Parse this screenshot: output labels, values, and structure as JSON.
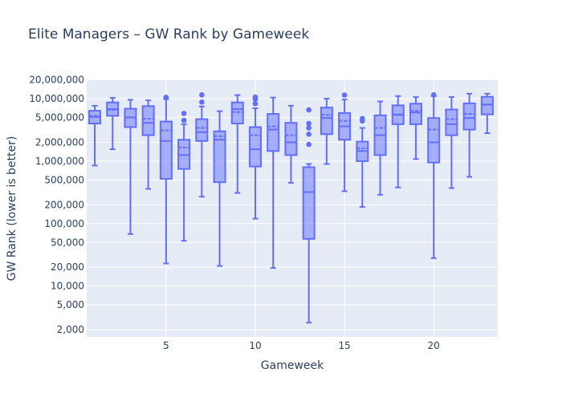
{
  "chart_data": {
    "type": "box",
    "title": "Elite Managers – GW Rank by Gameweek",
    "xlabel": "Gameweek",
    "ylabel": "GW Rank (lower is better)",
    "yscale": "log",
    "ylim": [
      1700,
      21000
    ],
    "ylim_note": "axis spans roughly 1,700 to 21,000,000 (log)",
    "yticks": [
      2000,
      5000,
      10000,
      20000,
      50000,
      100000,
      200000,
      500000,
      1000000,
      2000000,
      5000000,
      10000000,
      20000000
    ],
    "ytick_labels": [
      "2,000",
      "5,000",
      "10,000",
      "20,000",
      "50,000",
      "100,000",
      "200,000",
      "500,000",
      "1,000,000",
      "2,000,000",
      "5,000,000",
      "10,000,000",
      "20,000,000"
    ],
    "xticks": [
      5,
      10,
      15,
      20
    ],
    "xtick_labels": [
      "5",
      "10",
      "15",
      "20"
    ],
    "xlim": [
      0.5,
      23.5
    ],
    "grid": true,
    "legend": "none",
    "box_color": "#636efa",
    "fill_color": "rgba(99,110,250,0.5)",
    "plot_bg": "#e5ecf6",
    "boxes": [
      {
        "gw": 1,
        "lower_fence": 850000,
        "q1": 4000000,
        "median": 5100000,
        "mean": 5300000,
        "q3": 6400000,
        "upper_fence": 7700000,
        "outliers": []
      },
      {
        "gw": 2,
        "lower_fence": 1550000,
        "q1": 5300000,
        "median": 6800000,
        "mean": 6600000,
        "q3": 8700000,
        "upper_fence": 10300000,
        "outliers": []
      },
      {
        "gw": 3,
        "lower_fence": 68000,
        "q1": 3500000,
        "median": 5000000,
        "mean": 5000000,
        "q3": 6900000,
        "upper_fence": 9600000,
        "outliers": []
      },
      {
        "gw": 4,
        "lower_fence": 360000,
        "q1": 2600000,
        "median": 4100000,
        "mean": 4800000,
        "q3": 7600000,
        "upper_fence": 9400000,
        "outliers": []
      },
      {
        "gw": 5,
        "lower_fence": 23000,
        "q1": 520000,
        "median": 2100000,
        "mean": 3100000,
        "q3": 4300000,
        "upper_fence": 9800000,
        "outliers": [
          10500000
        ]
      },
      {
        "gw": 6,
        "lower_fence": 53000,
        "q1": 750000,
        "median": 1250000,
        "mean": 1650000,
        "q3": 2200000,
        "upper_fence": 3900000,
        "outliers": [
          4500000,
          5800000
        ]
      },
      {
        "gw": 7,
        "lower_fence": 270000,
        "q1": 2100000,
        "median": 2900000,
        "mean": 3400000,
        "q3": 4700000,
        "upper_fence": 7500000,
        "outliers": [
          8800000,
          11500000
        ]
      },
      {
        "gw": 8,
        "lower_fence": 21000,
        "q1": 460000,
        "median": 2200000,
        "mean": 2500000,
        "q3": 3000000,
        "upper_fence": 6300000,
        "outliers": []
      },
      {
        "gw": 9,
        "lower_fence": 310000,
        "q1": 4000000,
        "median": 6800000,
        "mean": 6100000,
        "q3": 8700000,
        "upper_fence": 11400000,
        "outliers": []
      },
      {
        "gw": 10,
        "lower_fence": 120000,
        "q1": 820000,
        "median": 1550000,
        "mean": 2600000,
        "q3": 3500000,
        "upper_fence": 7000000,
        "outliers": [
          8300000,
          9800000,
          10600000
        ]
      },
      {
        "gw": 11,
        "lower_fence": 19500,
        "q1": 1450000,
        "median": 3200000,
        "mean": 3600000,
        "q3": 5700000,
        "upper_fence": 10400000,
        "outliers": []
      },
      {
        "gw": 12,
        "lower_fence": 450000,
        "q1": 1250000,
        "median": 2000000,
        "mean": 2600000,
        "q3": 4100000,
        "upper_fence": 7700000,
        "outliers": []
      },
      {
        "gw": 13,
        "lower_fence": 2600,
        "q1": 57000,
        "median": 320000,
        "mean": 800000,
        "q3": 800000,
        "upper_fence": 900000,
        "outliers": [
          1850000,
          2700000,
          3400000,
          4000000,
          6600000
        ]
      },
      {
        "gw": 14,
        "lower_fence": 900000,
        "q1": 2700000,
        "median": 4900000,
        "mean": 5500000,
        "q3": 7200000,
        "upper_fence": 10000000,
        "outliers": []
      },
      {
        "gw": 15,
        "lower_fence": 330000,
        "q1": 2200000,
        "median": 3600000,
        "mean": 4400000,
        "q3": 5900000,
        "upper_fence": 9700000,
        "outliers": [
          11400000
        ]
      },
      {
        "gw": 16,
        "lower_fence": 185000,
        "q1": 1000000,
        "median": 1450000,
        "mean": 1600000,
        "q3": 2050000,
        "upper_fence": 3400000,
        "outliers": [
          4400000,
          4800000
        ]
      },
      {
        "gw": 17,
        "lower_fence": 290000,
        "q1": 1250000,
        "median": 2600000,
        "mean": 3400000,
        "q3": 5400000,
        "upper_fence": 9000000,
        "outliers": []
      },
      {
        "gw": 18,
        "lower_fence": 380000,
        "q1": 3900000,
        "median": 5500000,
        "mean": 5600000,
        "q3": 7800000,
        "upper_fence": 11000000,
        "outliers": []
      },
      {
        "gw": 19,
        "lower_fence": 1080000,
        "q1": 3900000,
        "median": 6000000,
        "mean": 6400000,
        "q3": 8300000,
        "upper_fence": 10600000,
        "outliers": []
      },
      {
        "gw": 20,
        "lower_fence": 28000,
        "q1": 950000,
        "median": 2000000,
        "mean": 3200000,
        "q3": 4900000,
        "upper_fence": 11000000,
        "outliers": [
          11500000
        ]
      },
      {
        "gw": 21,
        "lower_fence": 370000,
        "q1": 2600000,
        "median": 3900000,
        "mean": 4700000,
        "q3": 6700000,
        "upper_fence": 10600000,
        "outliers": []
      },
      {
        "gw": 22,
        "lower_fence": 560000,
        "q1": 3200000,
        "median": 4900000,
        "mean": 5700000,
        "q3": 8400000,
        "upper_fence": 12000000,
        "outliers": []
      },
      {
        "gw": 23,
        "lower_fence": 2800000,
        "q1": 5600000,
        "median": 8000000,
        "mean": 8100000,
        "q3": 10700000,
        "upper_fence": 12000000,
        "outliers": []
      }
    ]
  }
}
